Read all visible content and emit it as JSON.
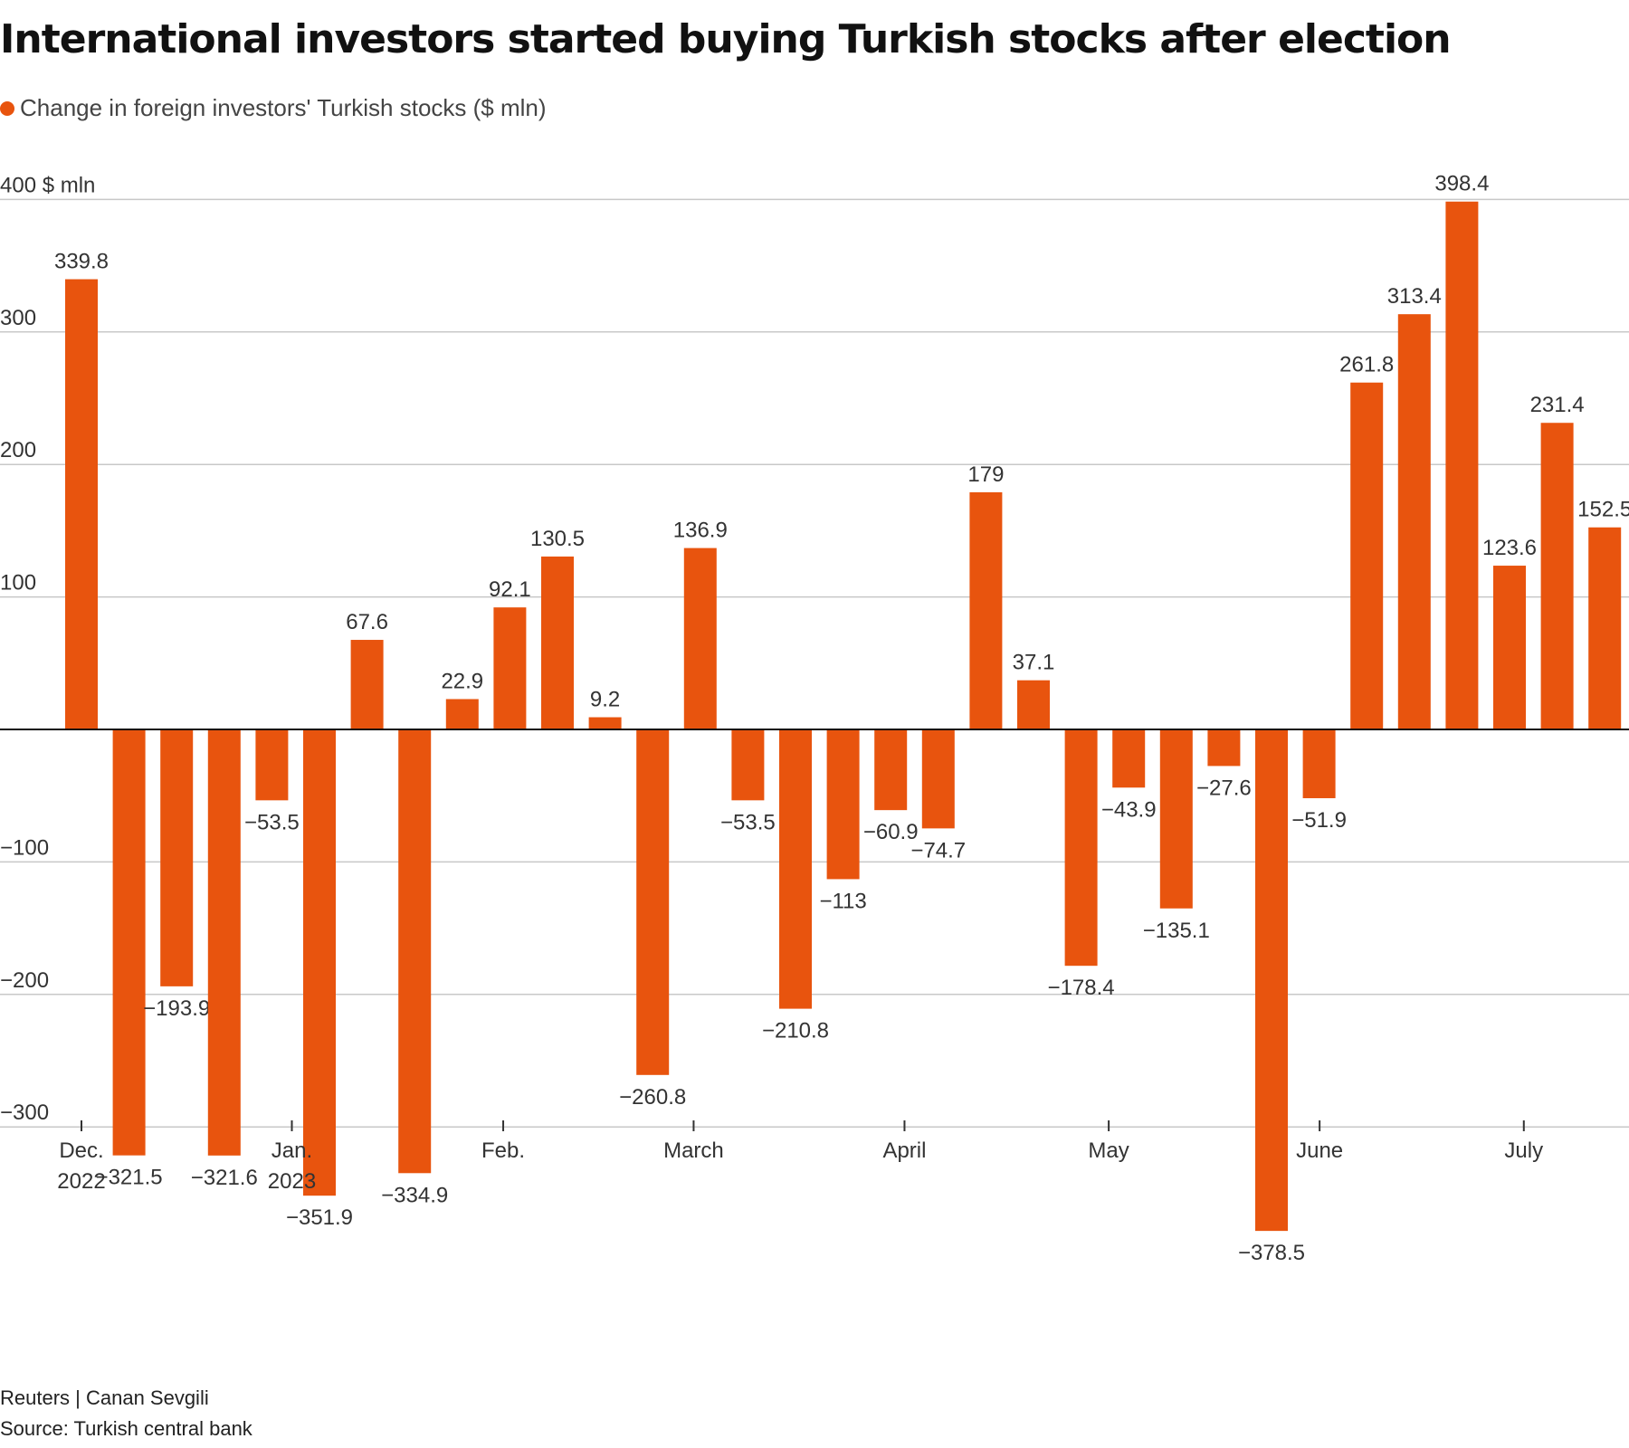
{
  "title": "International investors started buying Turkish stocks after election",
  "legend": {
    "label": "Change in foreign investors' Turkish stocks ($ mln)",
    "color": "#e8540e"
  },
  "footer": {
    "credit": "Reuters | Canan Sevgili",
    "source": "Source: Turkish central bank"
  },
  "chart_data": {
    "type": "bar",
    "bar_color": "#e8540e",
    "ylim": [
      -410,
      400
    ],
    "y_ticks": [
      {
        "value": 400,
        "label": "400 $ mln"
      },
      {
        "value": 300,
        "label": "300"
      },
      {
        "value": 200,
        "label": "200"
      },
      {
        "value": 100,
        "label": "100"
      },
      {
        "value": -100,
        "label": "−100"
      },
      {
        "value": -200,
        "label": "−200"
      },
      {
        "value": -300,
        "label": "−300"
      }
    ],
    "x_ticks": [
      {
        "label": [
          "Dec.",
          "2022"
        ],
        "at": 0
      },
      {
        "label": [
          "Jan.",
          "2023"
        ],
        "at": 4.42
      },
      {
        "label": [
          "Feb."
        ],
        "at": 8.86
      },
      {
        "label": [
          "March"
        ],
        "at": 12.86
      },
      {
        "label": [
          "April"
        ],
        "at": 17.29
      },
      {
        "label": [
          "May"
        ],
        "at": 21.58
      },
      {
        "label": [
          "June"
        ],
        "at": 26.01
      },
      {
        "label": [
          "July"
        ],
        "at": 30.3
      }
    ],
    "values": [
      339.8,
      -321.5,
      -193.9,
      -321.6,
      -53.5,
      -351.9,
      67.6,
      -334.9,
      22.9,
      92.1,
      130.5,
      9.2,
      -260.8,
      136.9,
      -53.5,
      -210.8,
      -113,
      -60.9,
      -74.7,
      179,
      37.1,
      -178.4,
      -43.9,
      -135.1,
      -27.6,
      -378.5,
      -51.9,
      261.8,
      313.4,
      398.4,
      123.6,
      231.4,
      152.5
    ],
    "labels": [
      "339.8",
      "−321.5",
      "−193.9",
      "−321.6",
      "−53.5",
      "−351.9",
      "67.6",
      "−334.9",
      "22.9",
      "92.1",
      "130.5",
      "9.2",
      "−260.8",
      "136.9",
      "−53.5",
      "−210.8",
      "−113",
      "−60.9",
      "−74.7",
      "179",
      "37.1",
      "−178.4",
      "−43.9",
      "−135.1",
      "−27.6",
      "−378.5",
      "−51.9",
      "261.8",
      "313.4",
      "398.4",
      "123.6",
      "231.4",
      "152.5"
    ]
  }
}
